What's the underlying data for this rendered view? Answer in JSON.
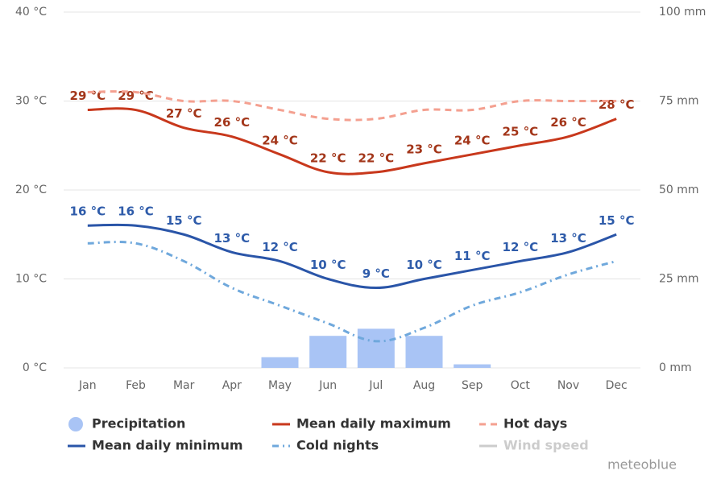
{
  "chart_data": {
    "type": "line",
    "categories": [
      "Jan",
      "Feb",
      "Mar",
      "Apr",
      "May",
      "Jun",
      "Jul",
      "Aug",
      "Sep",
      "Oct",
      "Nov",
      "Dec"
    ],
    "ylim": [
      0,
      40
    ],
    "yticks": [
      {
        "value": 0,
        "label": "0 °C"
      },
      {
        "value": 10,
        "label": "10 °C"
      },
      {
        "value": 20,
        "label": "20 °C"
      },
      {
        "value": 30,
        "label": "30 °C"
      },
      {
        "value": 40,
        "label": "40 °C"
      }
    ],
    "y2lim": [
      0,
      100
    ],
    "y2ticks": [
      {
        "value": 0,
        "label": "0 mm"
      },
      {
        "value": 25,
        "label": "25 mm"
      },
      {
        "value": 50,
        "label": "50 mm"
      },
      {
        "value": 75,
        "label": "75 mm"
      },
      {
        "value": 100,
        "label": "100 mm"
      }
    ],
    "grid": true,
    "series": [
      {
        "name": "Precipitation",
        "type": "bar",
        "axis": "y2",
        "color": "#a9c4f5",
        "values": [
          0,
          0,
          0,
          0,
          3,
          9,
          11,
          9,
          1,
          0,
          0,
          0
        ]
      },
      {
        "name": "Mean daily maximum",
        "color": "#c8381c",
        "dash": "solid",
        "label_color": "#a3361a",
        "values": [
          29,
          29,
          27,
          26,
          24,
          22,
          22,
          23,
          24,
          25,
          26,
          28
        ],
        "value_labels": [
          "29 °C",
          "29 °C",
          "27 °C",
          "26 °C",
          "24 °C",
          "22 °C",
          "22 °C",
          "23 °C",
          "24 °C",
          "25 °C",
          "26 °C",
          "28 °C"
        ]
      },
      {
        "name": "Hot days",
        "color": "#f4a090",
        "dash": "dashed",
        "values": [
          31,
          31,
          30,
          30,
          29,
          28,
          28,
          29,
          29,
          30,
          30,
          30
        ]
      },
      {
        "name": "Mean daily minimum",
        "color": "#2a55a8",
        "dash": "solid",
        "label_color": "#2f5caa",
        "values": [
          16,
          16,
          15,
          13,
          12,
          10,
          9,
          10,
          11,
          12,
          13,
          15
        ],
        "value_labels": [
          "16 °C",
          "16 °C",
          "15 °C",
          "13 °C",
          "12 °C",
          "10 °C",
          "9 °C",
          "10 °C",
          "11 °C",
          "12 °C",
          "13 °C",
          "15 °C"
        ]
      },
      {
        "name": "Cold nights",
        "color": "#6fa8dc",
        "dash": "dashdot",
        "values": [
          14,
          14,
          12,
          9,
          7,
          5,
          3,
          4.5,
          7,
          8.5,
          10.5,
          12
        ]
      },
      {
        "name": "Wind speed",
        "color": "#cccccc",
        "dash": "solid",
        "hidden": true
      }
    ],
    "watermark": "meteoblue"
  }
}
